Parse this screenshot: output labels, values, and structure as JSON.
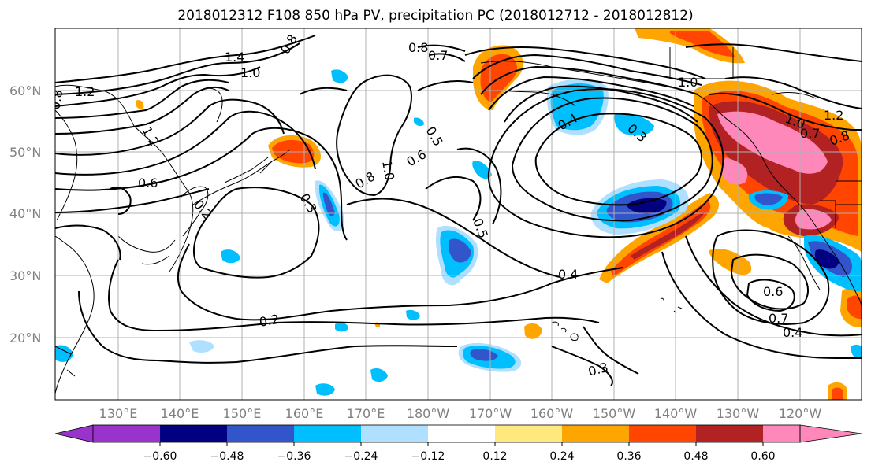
{
  "title": "2018012312 F108 850 hPa PV, precipitation PC (2018012712 - 2018012812)",
  "lon_ticks": [
    "130°E",
    "140°E",
    "150°E",
    "160°E",
    "170°E",
    "180°W",
    "170°W",
    "160°W",
    "150°W",
    "140°W",
    "130°W",
    "120°W"
  ],
  "lat_ticks": [
    "60°N",
    "50°N",
    "40°N",
    "30°N",
    "20°N"
  ],
  "colorbar": {
    "colors": [
      "#9933cc",
      "#000080",
      "#3355cc",
      "#00bfff",
      "#b0e0ff",
      "#ffffff",
      "#ffe97f",
      "#ffa500",
      "#ff4500",
      "#b22222",
      "#ff88bb"
    ],
    "labels": [
      "−0.60",
      "−0.48",
      "−0.36",
      "−0.24",
      "−0.12",
      "0.12",
      "0.24",
      "0.36",
      "0.48",
      "0.60"
    ]
  },
  "contour_labels": [
    "1.4",
    "0.8",
    "1.0",
    "0.8",
    "0.7",
    "1.2",
    "0.8",
    "1.2",
    "0.6",
    "0.2",
    "0.3",
    "1.0",
    "0.8",
    "0.5",
    "0.6",
    "0.4",
    "0.3",
    "1.0",
    "1.2",
    "1.0",
    "0.7",
    "0.8",
    "0.5",
    "0.4",
    "0.2",
    "0.3",
    "0.6",
    "0.7",
    "0.4"
  ],
  "map": {
    "colors": {
      "land": "#000000",
      "grid": "#b0b0b0"
    }
  }
}
